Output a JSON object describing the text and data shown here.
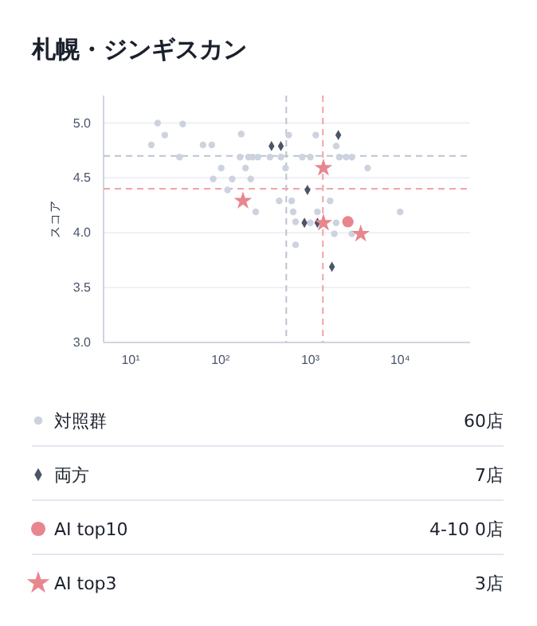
{
  "chart_data": {
    "type": "scatter",
    "title": "札幌・ジンギスカン",
    "ylabel": "スコア",
    "log": "x",
    "grid": "y",
    "legend": "bottom",
    "xlim": [
      5,
      60000
    ],
    "xticks": [
      {
        "value": 10,
        "label": "10¹"
      },
      {
        "value": 100,
        "label": "10²"
      },
      {
        "value": 1000,
        "label": "10³"
      },
      {
        "value": 10000,
        "label": "10⁴"
      }
    ],
    "ylim": [
      3,
      5.25
    ],
    "yticks": [
      {
        "value": 3,
        "label": "3.0"
      },
      {
        "value": 3.5,
        "label": "3.5"
      },
      {
        "value": 4,
        "label": "4.0"
      },
      {
        "value": 4.5,
        "label": "4.5"
      },
      {
        "value": 5,
        "label": "5.0"
      }
    ],
    "ref_lines": [
      {
        "axis": "x",
        "value": 540,
        "color": "#bcc3d0",
        "line_style": "dashed"
      },
      {
        "axis": "x",
        "value": 1380,
        "color": "#f0a3aa",
        "line_style": "dashed"
      },
      {
        "axis": "y",
        "value": 4.7,
        "color": "#bcc3d0",
        "line_style": "dashed"
      },
      {
        "axis": "y",
        "value": 4.4,
        "color": "#f0a3aa",
        "line_style": "dashed"
      }
    ],
    "series": [
      {
        "name": "対照群",
        "color": "#cdd3de",
        "marker": "circle",
        "x": [
          17,
          20,
          24,
          38,
          35,
          64,
          80,
          102,
          83,
          135,
          120,
          170,
          165,
          205,
          228,
          261,
          190,
          217,
          247,
          355,
          470,
          530,
          575,
          450,
          620,
          645,
          685,
          685,
          815,
          1000,
          1150,
          1200,
          1000,
          1660,
          1850,
          1940,
          1940,
          2100,
          2500,
          2900,
          2900,
          4350,
          10000
        ],
        "values": [
          4.8,
          5.0,
          4.89,
          4.99,
          4.69,
          4.8,
          4.8,
          4.59,
          4.49,
          4.49,
          4.39,
          4.9,
          4.69,
          4.69,
          4.69,
          4.69,
          4.59,
          4.49,
          4.19,
          4.69,
          4.69,
          4.59,
          4.89,
          4.29,
          4.29,
          4.19,
          4.1,
          3.89,
          4.69,
          4.69,
          4.89,
          4.19,
          4.09,
          4.29,
          3.99,
          4.09,
          4.79,
          4.69,
          4.69,
          4.69,
          3.99,
          4.59,
          4.19
        ]
      },
      {
        "name": "両方",
        "color": "#4a5568",
        "marker": "diamond",
        "x": [
          370,
          470,
          930,
          860,
          1200,
          2050,
          1740
        ],
        "values": [
          4.79,
          4.79,
          4.39,
          4.09,
          4.09,
          4.89,
          3.69
        ]
      },
      {
        "name": "AI top10",
        "color": "#e8868e",
        "marker": "circle",
        "x": [
          2620
        ],
        "values": [
          4.1
        ]
      },
      {
        "name": "AI top3",
        "color": "#e8868e",
        "marker": "star",
        "x": [
          178,
          1400,
          1400,
          3640
        ],
        "values": [
          4.29,
          4.59,
          4.09,
          3.99
        ]
      }
    ],
    "annotations": [
      "60店",
      "7店",
      "4-10 0店",
      "3店"
    ]
  }
}
